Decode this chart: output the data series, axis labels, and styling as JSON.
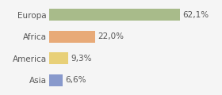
{
  "categories": [
    "Europa",
    "Africa",
    "America",
    "Asia"
  ],
  "values": [
    62.1,
    22.0,
    9.3,
    6.6
  ],
  "labels": [
    "62,1%",
    "22,0%",
    "9,3%",
    "6,6%"
  ],
  "bar_colors": [
    "#a8bb8a",
    "#e8aa78",
    "#e8d078",
    "#8899cc"
  ],
  "background_color": "#f5f5f5",
  "xlim": [
    0,
    80
  ],
  "label_fontsize": 7.5,
  "tick_fontsize": 7.5,
  "bar_height": 0.55
}
